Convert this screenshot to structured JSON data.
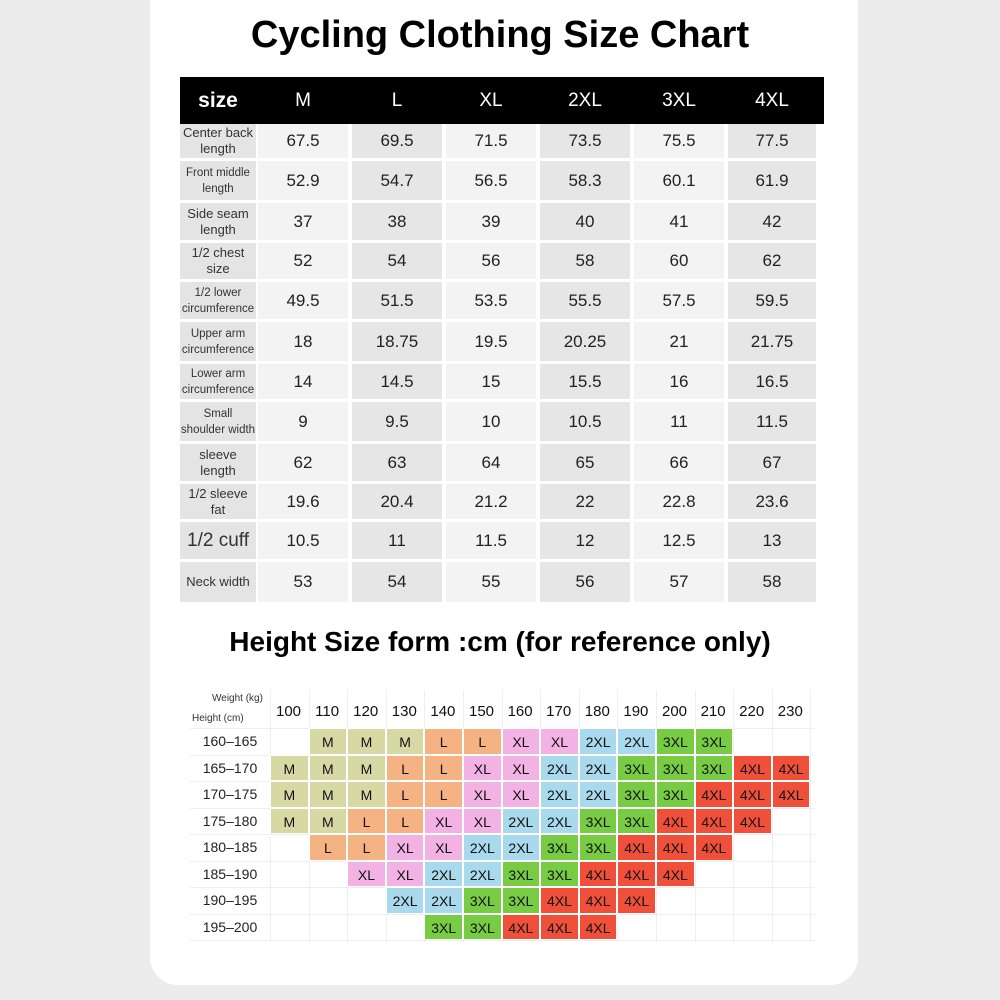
{
  "titles": {
    "size_chart": "Cycling Clothing Size Chart",
    "height_form": "Height Size form :cm (for reference only)"
  },
  "size_table": {
    "header_label": "size",
    "sizes": [
      "M",
      "L",
      "XL",
      "2XL",
      "3XL",
      "4XL"
    ],
    "rows": [
      {
        "label": "Center back length",
        "values": [
          "67.5",
          "69.5",
          "71.5",
          "73.5",
          "75.5",
          "77.5"
        ]
      },
      {
        "label": "Front middle length",
        "values": [
          "52.9",
          "54.7",
          "56.5",
          "58.3",
          "60.1",
          "61.9"
        ]
      },
      {
        "label": "Side seam length",
        "values": [
          "37",
          "38",
          "39",
          "40",
          "41",
          "42"
        ]
      },
      {
        "label": "1/2 chest size",
        "values": [
          "52",
          "54",
          "56",
          "58",
          "60",
          "62"
        ]
      },
      {
        "label": "1/2 lower circumference",
        "values": [
          "49.5",
          "51.5",
          "53.5",
          "55.5",
          "57.5",
          "59.5"
        ]
      },
      {
        "label": "Upper arm circumference",
        "values": [
          "18",
          "18.75",
          "19.5",
          "20.25",
          "21",
          "21.75"
        ]
      },
      {
        "label": "Lower arm circumference",
        "values": [
          "14",
          "14.5",
          "15",
          "15.5",
          "16",
          "16.5"
        ]
      },
      {
        "label": "Small shoulder width",
        "values": [
          "9",
          "9.5",
          "10",
          "10.5",
          "11",
          "11.5"
        ]
      },
      {
        "label": "sleeve length",
        "values": [
          "62",
          "63",
          "64",
          "65",
          "66",
          "67"
        ]
      },
      {
        "label": "1/2 sleeve fat",
        "values": [
          "19.6",
          "20.4",
          "21.2",
          "22",
          "22.8",
          "23.6"
        ]
      },
      {
        "label": "1/2 cuff",
        "values": [
          "10.5",
          "11",
          "11.5",
          "12",
          "12.5",
          "13"
        ]
      },
      {
        "label": "Neck width",
        "values": [
          "53",
          "54",
          "55",
          "56",
          "57",
          "58"
        ]
      }
    ]
  },
  "height_grid": {
    "weight_axis_label": "Weight (kg)",
    "height_axis_label": "Height (cm)",
    "weights": [
      "100",
      "110",
      "120",
      "130",
      "140",
      "150",
      "160",
      "170",
      "180",
      "190",
      "200",
      "210",
      "220",
      "230"
    ],
    "heights": [
      "160-165",
      "165-170",
      "170-175",
      "175-180",
      "180-185",
      "185-190",
      "190-195",
      "195-200"
    ],
    "cells": [
      [
        "",
        "M",
        "M",
        "M",
        "L",
        "L",
        "XL",
        "XL",
        "2XL",
        "2XL",
        "3XL",
        "3XL",
        "",
        ""
      ],
      [
        "M",
        "M",
        "M",
        "L",
        "L",
        "XL",
        "XL",
        "2XL",
        "2XL",
        "3XL",
        "3XL",
        "3XL",
        "4XL",
        "4XL"
      ],
      [
        "M",
        "M",
        "M",
        "L",
        "L",
        "XL",
        "XL",
        "2XL",
        "2XL",
        "3XL",
        "3XL",
        "4XL",
        "4XL",
        "4XL"
      ],
      [
        "M",
        "M",
        "L",
        "L",
        "XL",
        "XL",
        "2XL",
        "2XL",
        "3XL",
        "3XL",
        "4XL",
        "4XL",
        "4XL",
        ""
      ],
      [
        "",
        "L",
        "L",
        "XL",
        "XL",
        "2XL",
        "2XL",
        "3XL",
        "3XL",
        "4XL",
        "4XL",
        "4XL",
        "",
        ""
      ],
      [
        "",
        "",
        "XL",
        "XL",
        "2XL",
        "2XL",
        "3XL",
        "3XL",
        "4XL",
        "4XL",
        "4XL",
        "",
        "",
        ""
      ],
      [
        "",
        "",
        "",
        "2XL",
        "2XL",
        "3XL",
        "3XL",
        "4XL",
        "4XL",
        "4XL",
        "",
        "",
        "",
        ""
      ],
      [
        "",
        "",
        "",
        "",
        "3XL",
        "3XL",
        "4XL",
        "4XL",
        "4XL",
        "",
        "",
        "",
        "",
        ""
      ]
    ],
    "colors": {
      "M": "#d6d9a3",
      "L": "#f5b383",
      "XL": "#f2b2e3",
      "2XL": "#a8d9ec",
      "3XL": "#77cc44",
      "4XL": "#f0503a"
    }
  }
}
